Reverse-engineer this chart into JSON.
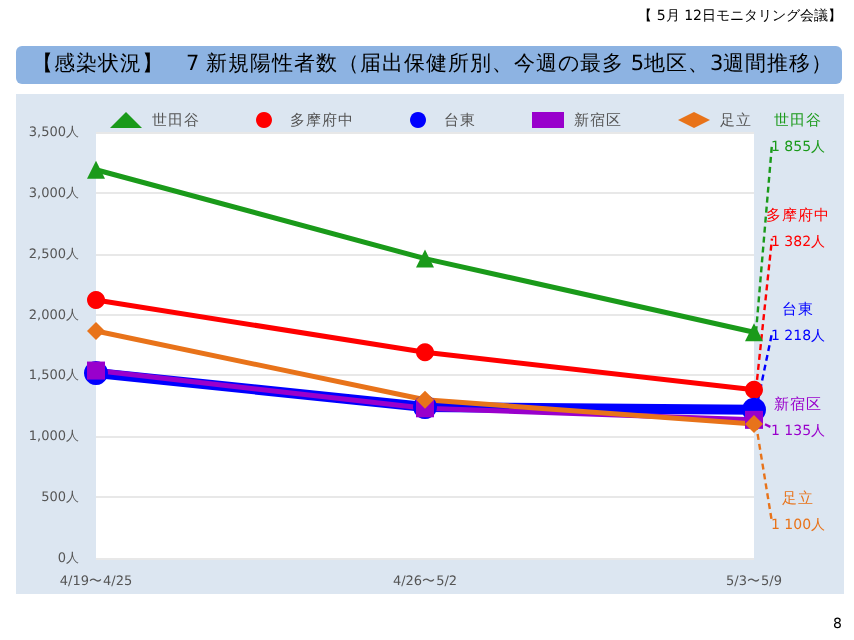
{
  "chart_data": {
    "type": "line",
    "title": "【感染状況】　7 新規陽性者数（届出保健所別、今週の最多 5地区、3週間推移）",
    "subtitle": "【 5月 12日モニタリング会議】",
    "categories": [
      "4/19〜4/25",
      "4/26〜5/2",
      "5/3〜5/9"
    ],
    "series": [
      {
        "name": "世田谷",
        "color": "#1a9a1a",
        "marker": "triangle",
        "values": [
          3190,
          2460,
          1855
        ]
      },
      {
        "name": "多摩府中",
        "color": "#ff0000",
        "marker": "circle",
        "values": [
          2120,
          1690,
          1382
        ]
      },
      {
        "name": "台東",
        "color": "#0000ff",
        "marker": "circle",
        "values": [
          1520,
          1240,
          1218
        ]
      },
      {
        "name": "新宿区",
        "color": "#9900cc",
        "marker": "square",
        "values": [
          1540,
          1230,
          1135
        ]
      },
      {
        "name": "足立",
        "color": "#e8731a",
        "marker": "diamond",
        "values": [
          1865,
          1300,
          1100
        ]
      }
    ],
    "ylim": [
      0,
      3500
    ],
    "yticks": [
      {
        "value": 0,
        "label": "0人"
      },
      {
        "value": 500,
        "label": "500人"
      },
      {
        "value": 1000,
        "label": "1,000人"
      },
      {
        "value": 1500,
        "label": "1,500人"
      },
      {
        "value": 2000,
        "label": "2,000人"
      },
      {
        "value": 2500,
        "label": "2,500人"
      },
      {
        "value": 3000,
        "label": "3,000人"
      },
      {
        "value": 3500,
        "label": "3,500人"
      }
    ],
    "grid": "y",
    "legend": "top",
    "line_style": "solid",
    "annotations": [
      {
        "text": "1 855人",
        "x": "5/3〜5/9",
        "y": 1855
      },
      {
        "text": "1 382人",
        "x": "5/3〜5/9",
        "y": 1382
      },
      {
        "text": "1 218人",
        "x": "5/3〜5/9",
        "y": 1218
      },
      {
        "text": "1 135人",
        "x": "5/3〜5/9",
        "y": 1135
      },
      {
        "text": "1 100人",
        "x": "5/3〜5/9",
        "y": 1100
      },
      "8"
    ]
  }
}
